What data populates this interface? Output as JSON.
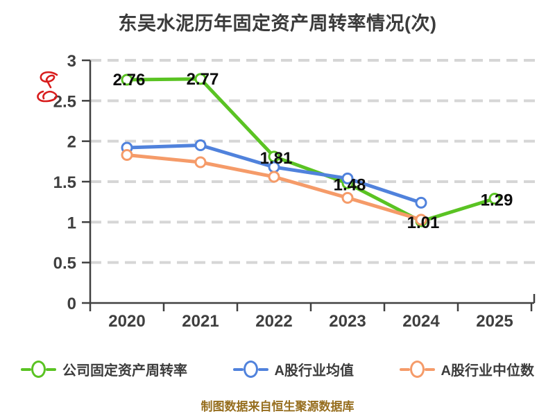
{
  "title": "东吴水泥历年固定资产周转率情况(次)",
  "footer": "制图数据来自恒生聚源数据库",
  "colors": {
    "company": "#5ac323",
    "industry_avg": "#5082dc",
    "industry_median": "#f59b69",
    "axis": "#404040",
    "grid": "#d6d6d6",
    "tick_label": "#3f3f3f",
    "data_label": "#0d0d0d",
    "title": "#3b3b3b",
    "footer": "#966e1e",
    "scribble": "#d81d1d"
  },
  "chart_data": {
    "type": "line",
    "title": "东吴水泥历年固定资产周转率情况(次)",
    "categories": [
      "2020",
      "2021",
      "2022",
      "2023",
      "2024",
      "2025"
    ],
    "series": [
      {
        "name": "公司固定资产周转率",
        "color_key": "company",
        "values": [
          2.76,
          2.77,
          1.81,
          1.48,
          1.01,
          1.29
        ],
        "labels": [
          "2.76",
          "2.77",
          "1.81",
          "1.48",
          "1.01",
          "1.29"
        ]
      },
      {
        "name": "A股行业均值",
        "color_key": "industry_avg",
        "values": [
          1.92,
          1.95,
          1.68,
          1.54,
          1.24,
          null
        ]
      },
      {
        "name": "A股行业中位数",
        "color_key": "industry_median",
        "values": [
          1.83,
          1.74,
          1.56,
          1.3,
          1.03,
          null
        ]
      }
    ],
    "xlabel": "",
    "ylabel": "",
    "ylim": [
      0,
      3
    ],
    "ytick_step": 0.5,
    "yticks": [
      "0",
      "0.5",
      "1",
      "1.5",
      "2",
      "2.5",
      "3"
    ],
    "grid": "dashed-horizontal",
    "legend_position": "bottom",
    "marker": "open-circle"
  }
}
